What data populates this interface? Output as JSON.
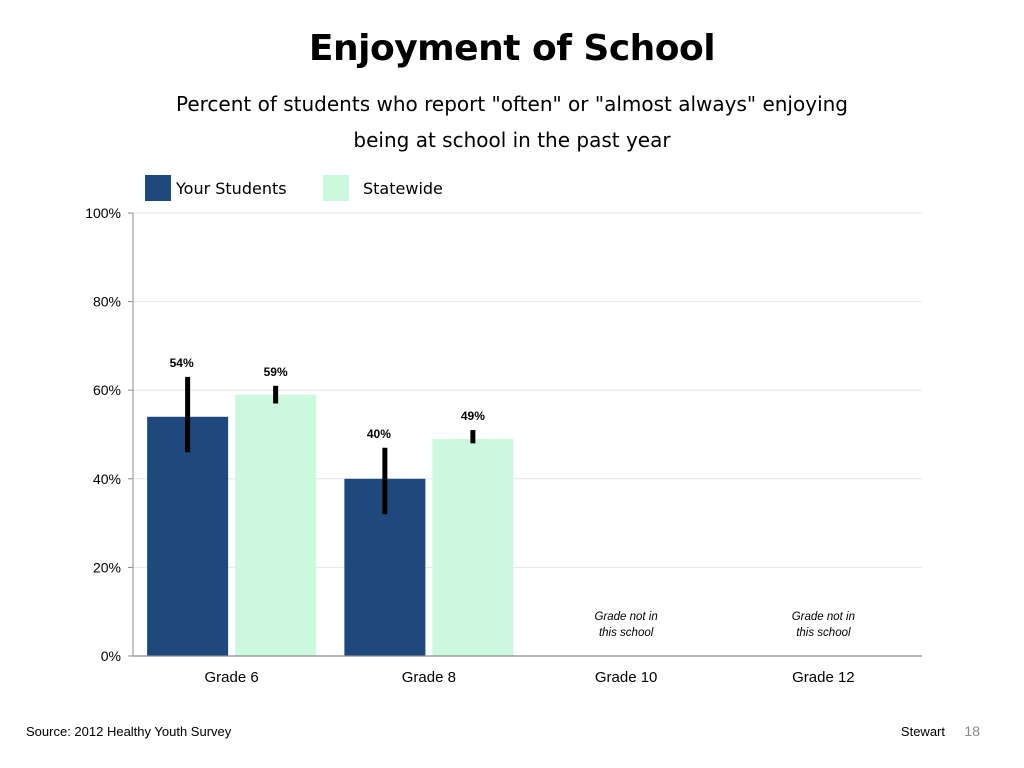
{
  "slide": {
    "title": "Enjoyment of School",
    "subtitle": "Percent of students who report \"often\" or \"almost always\" enjoying being at school in the past year",
    "source": "Source: 2012 Healthy Youth Survey",
    "author": "Stewart",
    "page_number": "18"
  },
  "colors": {
    "your_students": "#1f497d",
    "statewide": "#ccf8dd",
    "error_bar": "#000000",
    "grid": "#e6e6e6",
    "axis": "#8c8c8c"
  },
  "chart_data": {
    "type": "bar",
    "categories": [
      "Grade 6",
      "Grade 8",
      "Grade 10",
      "Grade 12"
    ],
    "series": [
      {
        "name": "Your Students",
        "values": [
          54,
          40,
          null,
          null
        ],
        "labels": [
          "54%",
          "40%",
          "",
          ""
        ],
        "error_low": [
          46,
          32,
          null,
          null
        ],
        "error_high": [
          63,
          47,
          null,
          null
        ]
      },
      {
        "name": "Statewide",
        "values": [
          59,
          49,
          null,
          null
        ],
        "labels": [
          "59%",
          "49%",
          "",
          ""
        ],
        "error_low": [
          57,
          48,
          null,
          null
        ],
        "error_high": [
          61,
          51,
          null,
          null
        ]
      }
    ],
    "category_notes": [
      null,
      null,
      [
        "Grade not in",
        "this school"
      ],
      [
        "Grade not in",
        "this school"
      ]
    ],
    "y_ticks": [
      {
        "value": 0,
        "label": "0%"
      },
      {
        "value": 20,
        "label": "20%"
      },
      {
        "value": 40,
        "label": "40%"
      },
      {
        "value": 60,
        "label": "60%"
      },
      {
        "value": 80,
        "label": "80%"
      },
      {
        "value": 100,
        "label": "100%"
      }
    ],
    "ylim": [
      0,
      100
    ],
    "grid": true,
    "legend_position": "top-left"
  }
}
